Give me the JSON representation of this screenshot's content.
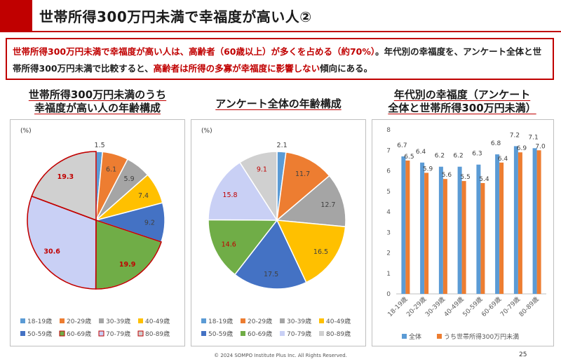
{
  "slide": {
    "title": "世帯所得300万円未満で幸福度が高い人②",
    "summary": [
      {
        "text": "世帯所得300万円未満で幸福度が高い人は、高齢者（60歳以上）が多くを占める（約70%）",
        "style": "red"
      },
      {
        "text": "。年代別の幸福度を、アンケート全体と世帯所得300万円未満で比較すると、",
        "style": "dark"
      },
      {
        "text": "高齢者は所得の多寡が幸福度に影響しない",
        "style": "red"
      },
      {
        "text": "傾向にある。",
        "style": "dark"
      }
    ],
    "footer": "© 2024 SOMPO Institute Plus Inc. All Rights Reserved.",
    "page_number": "25"
  },
  "headings": {
    "chart1_line1": "世帯所得300万円未満のうち",
    "chart1_line2": "幸福度が高い人の年齢構成",
    "chart2": "アンケート全体の年齢構成",
    "chart3_line1": "年代別の幸福度（アンケート",
    "chart3_line2": "全体と世帯所得300万円未満）"
  },
  "colors": {
    "accent": "#c00000",
    "age_palette": [
      "#5b9bd5",
      "#ed7d31",
      "#a5a5a5",
      "#ffc000",
      "#4472c4",
      "#70ad47",
      "#c9d0f5",
      "#d0d0d0"
    ],
    "all_series": "#5b9bd5",
    "low_income_series": "#ed7d31",
    "highlight_label": "#c00000"
  },
  "chart_data": [
    {
      "type": "pie",
      "unit_label": "(%)",
      "categories": [
        "18-19歳",
        "20-29歳",
        "30-39歳",
        "40-49歳",
        "50-59歳",
        "60-69歳",
        "70-79歳",
        "80-89歳"
      ],
      "values": [
        1.5,
        6.1,
        5.9,
        7.4,
        9.2,
        19.9,
        30.6,
        19.3
      ],
      "labels": [
        "1.5",
        "6.1",
        "5.9",
        "7.4",
        "9.2",
        "19.9",
        "30.6",
        "19.3"
      ],
      "highlighted": [
        false,
        false,
        false,
        false,
        false,
        true,
        true,
        true
      ],
      "legend_position": "bottom"
    },
    {
      "type": "pie",
      "unit_label": "(%)",
      "categories": [
        "18-19歳",
        "20-29歳",
        "30-39歳",
        "40-49歳",
        "50-59歳",
        "60-69歳",
        "70-79歳",
        "80-89歳"
      ],
      "values": [
        2.1,
        11.7,
        12.7,
        16.5,
        17.5,
        14.6,
        15.8,
        9.1
      ],
      "labels": [
        "2.1",
        "11.7",
        "12.7",
        "16.5",
        "17.5",
        "14.6",
        "15.8",
        "9.1"
      ],
      "highlighted": [
        false,
        false,
        false,
        false,
        false,
        true,
        true,
        true
      ],
      "legend_position": "bottom"
    },
    {
      "type": "bar",
      "categories": [
        "18-19歳",
        "20-29歳",
        "30-39歳",
        "40-49歳",
        "50-59歳",
        "60-69歳",
        "70-79歳",
        "80-89歳"
      ],
      "series": [
        {
          "name": "全体",
          "values": [
            6.7,
            6.4,
            6.2,
            6.2,
            6.3,
            6.8,
            7.2,
            7.1
          ],
          "labels": [
            "6.7",
            "6.4",
            "6.2",
            "6.2",
            "6.3",
            "6.8",
            "7.2",
            "7.1"
          ]
        },
        {
          "name": "うち世帯所得300万円未満",
          "values": [
            6.5,
            5.9,
            5.6,
            5.5,
            5.4,
            6.4,
            6.9,
            7.0
          ],
          "labels": [
            "6.5",
            "5.9",
            "5.6",
            "5.5",
            "5.4",
            "6.4",
            "6.9",
            "7.0"
          ]
        }
      ],
      "ylim": [
        0,
        8
      ],
      "yticks": [
        "0",
        "1",
        "2",
        "3",
        "4",
        "5",
        "6",
        "7",
        "8"
      ],
      "grid": false,
      "legend_position": "bottom"
    }
  ]
}
